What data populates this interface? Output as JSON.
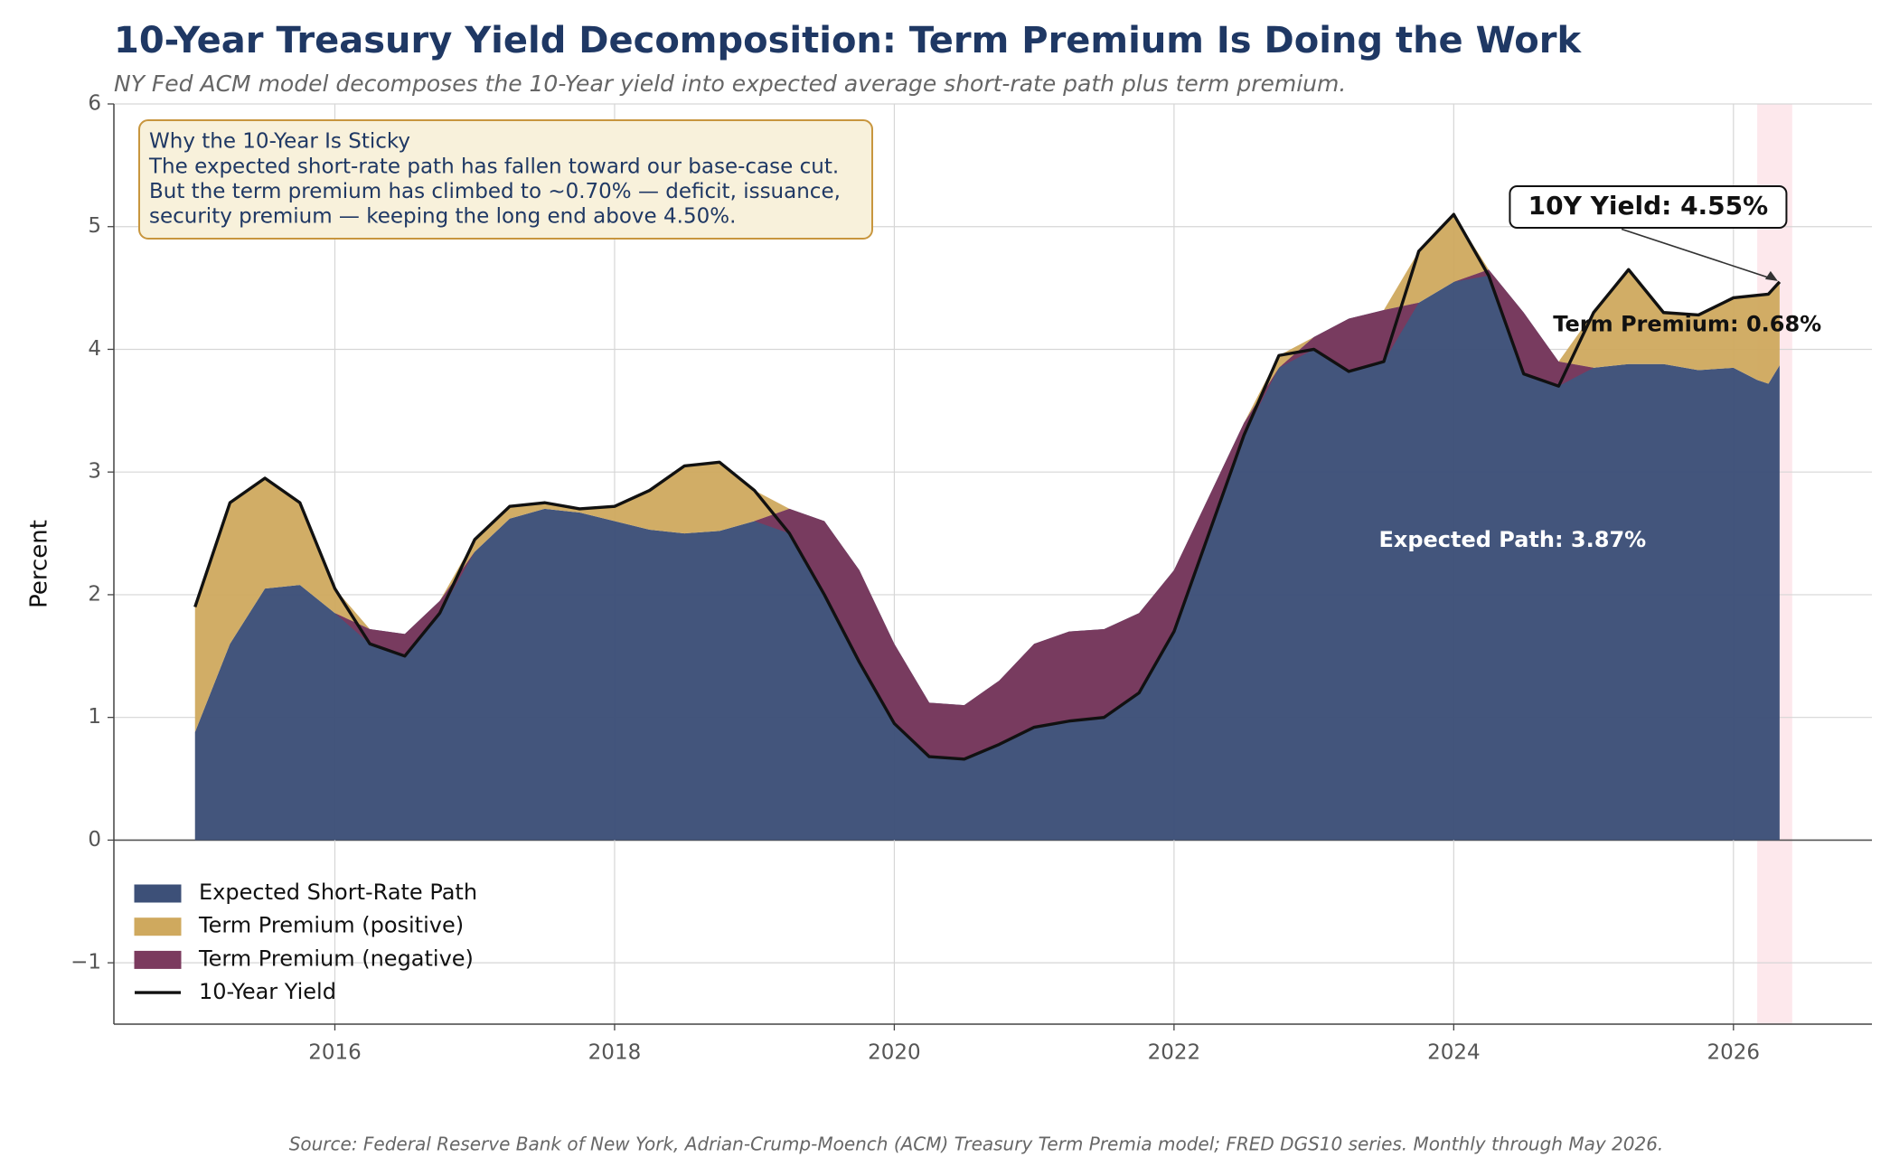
{
  "chart_data": {
    "type": "area",
    "title": "10-Year Treasury Yield Decomposition: Term Premium Is Doing the Work",
    "subtitle": "NY Fed ACM model decomposes the 10-Year yield into expected average short-rate path plus term premium.",
    "y_label": "Percent",
    "source": "Source: Federal Reserve Bank of New York, Adrian-Crump-Moench (ACM) Treasury Term Premia model; FRED DGS10 series. Monthly through May 2026.",
    "note_title": "Why the 10-Year Is Sticky",
    "note_lines": [
      "The expected short-rate path has fallen toward our base-case cut.",
      "But the term premium has climbed to ~0.70% — deficit, issuance,",
      "security premium — keeping the long end above 4.50%."
    ],
    "annotations": [
      "10Y Yield: 4.55%",
      "Term Premium: 0.68%",
      "Expected Path: 3.87%"
    ],
    "x": [
      2015.0,
      2015.25,
      2015.5,
      2015.75,
      2016.0,
      2016.25,
      2016.5,
      2016.75,
      2017.0,
      2017.25,
      2017.5,
      2017.75,
      2018.0,
      2018.25,
      2018.5,
      2018.75,
      2019.0,
      2019.25,
      2019.5,
      2019.75,
      2020.0,
      2020.25,
      2020.5,
      2020.75,
      2021.0,
      2021.25,
      2021.5,
      2021.75,
      2022.0,
      2022.25,
      2022.5,
      2022.75,
      2023.0,
      2023.25,
      2023.5,
      2023.75,
      2024.0,
      2024.25,
      2024.5,
      2024.75,
      2025.0,
      2025.25,
      2025.5,
      2025.75,
      2026.0,
      2026.17,
      2026.25,
      2026.33
    ],
    "series": [
      {
        "name": "Expected Short-Rate Path",
        "color": "#3d5078",
        "values": [
          0.88,
          1.6,
          2.05,
          2.08,
          1.85,
          1.72,
          1.68,
          1.95,
          2.35,
          2.62,
          2.7,
          2.67,
          2.6,
          2.53,
          2.5,
          2.52,
          2.6,
          2.7,
          2.6,
          2.2,
          1.6,
          1.12,
          1.1,
          1.3,
          1.6,
          1.7,
          1.72,
          1.85,
          2.2,
          2.8,
          3.4,
          3.85,
          4.1,
          4.25,
          4.32,
          4.38,
          4.55,
          4.65,
          4.3,
          3.9,
          3.85,
          3.88,
          3.88,
          3.83,
          3.85,
          3.75,
          3.72,
          3.87
        ]
      },
      {
        "name": "Term Premium (positive)",
        "color": "#cfa95e"
      },
      {
        "name": "Term Premium (negative)",
        "color": "#7b3a5e"
      },
      {
        "name": "10-Year Yield",
        "color": "#111111",
        "values": [
          1.9,
          2.75,
          2.95,
          2.75,
          2.05,
          1.6,
          1.5,
          1.85,
          2.45,
          2.72,
          2.75,
          2.7,
          2.72,
          2.85,
          3.05,
          3.08,
          2.85,
          2.5,
          2.0,
          1.45,
          0.95,
          0.68,
          0.66,
          0.78,
          0.92,
          0.97,
          1.0,
          1.2,
          1.7,
          2.5,
          3.3,
          3.95,
          4.0,
          3.82,
          3.9,
          4.8,
          5.1,
          4.6,
          3.8,
          3.7,
          4.3,
          4.65,
          4.3,
          4.28,
          4.42,
          4.44,
          4.45,
          4.55
        ]
      }
    ],
    "highlight_x": [
      2026.17,
      2026.42
    ],
    "highlight_color": "#fde8ec",
    "xlim": [
      2014.42,
      2026.99
    ],
    "xticks": [
      2016,
      2018,
      2020,
      2022,
      2024,
      2026
    ],
    "ylim": [
      -1.5,
      6
    ],
    "yticks": [
      -1,
      0,
      1,
      2,
      3,
      4,
      5,
      6
    ],
    "ytick_labels": [
      {
        "value": -1,
        "label": "−1"
      }
    ],
    "grid": true,
    "legend": "lower left"
  }
}
